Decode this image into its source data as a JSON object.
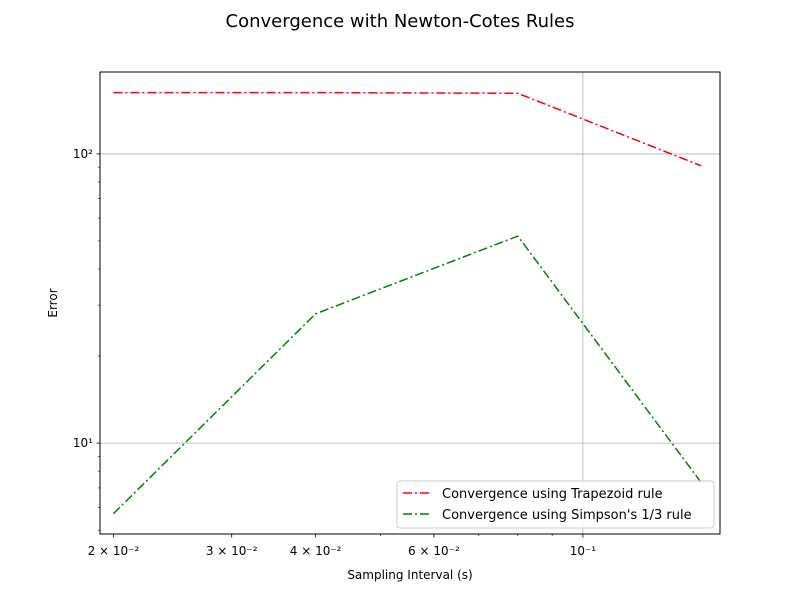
{
  "chart_data": {
    "type": "line",
    "title": "Convergence with Newton-Cotes Rules",
    "xlabel": "Sampling Interval (s)",
    "ylabel": "Error",
    "xscale": "log",
    "yscale": "log",
    "xlim": [
      0.0191,
      0.16
    ],
    "ylim": [
      4.85,
      192
    ],
    "grid": "major",
    "legend_position": "lower-right",
    "x_ticks": [
      {
        "value": 0.02,
        "label": "2 × 10⁻²"
      },
      {
        "value": 0.03,
        "label": "3 × 10⁻²"
      },
      {
        "value": 0.04,
        "label": "4 × 10⁻²"
      },
      {
        "value": 0.06,
        "label": "6 × 10⁻²"
      },
      {
        "value": 0.1,
        "label": "10⁻¹"
      }
    ],
    "y_ticks": [
      {
        "value": 10,
        "label": "10¹"
      },
      {
        "value": 100,
        "label": "10²"
      }
    ],
    "x": [
      0.02,
      0.04,
      0.08,
      0.15
    ],
    "series": [
      {
        "name": "Convergence using Trapezoid rule",
        "color": "#ff0000",
        "linestyle": "dashdot",
        "values": [
          163,
          163,
          162,
          91
        ]
      },
      {
        "name": "Convergence using Simpson's 1/3 rule",
        "color": "#008000",
        "linestyle": "dashdot",
        "values": [
          5.7,
          28,
          52,
          7.3
        ]
      }
    ]
  }
}
